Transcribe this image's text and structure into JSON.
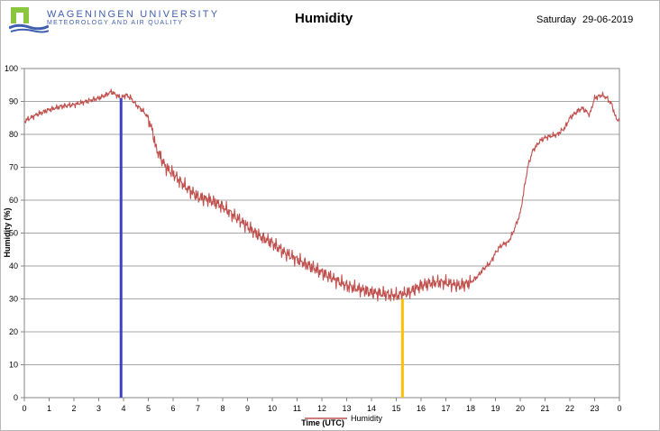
{
  "header": {
    "university": "WAGENINGEN UNIVERSITY",
    "department": "METEOROLOGY AND AIR QUALITY",
    "day": "Saturday",
    "date": "29-06-2019"
  },
  "colors": {
    "series": "#c0504d",
    "marker_left": "#3b43c4",
    "marker_right": "#ffc000",
    "grid": "#a6a6a6",
    "logo_green": "#8bc63f",
    "logo_blue": "#3f5fae"
  },
  "chart_data": {
    "type": "line",
    "title": "Humidity",
    "xlabel": "Time (UTC)",
    "ylabel": "Humidity (%)",
    "xlim": [
      0,
      24
    ],
    "ylim": [
      0,
      100
    ],
    "grid": true,
    "legend": "bottom",
    "x_tick_labels": [
      "0",
      "1",
      "2",
      "3",
      "4",
      "5",
      "6",
      "7",
      "8",
      "9",
      "10",
      "11",
      "12",
      "13",
      "14",
      "15",
      "16",
      "17",
      "18",
      "19",
      "20",
      "21",
      "22",
      "23",
      "0"
    ],
    "y_tick_labels": [
      "0",
      "10",
      "20",
      "30",
      "40",
      "50",
      "60",
      "70",
      "80",
      "90",
      "100"
    ],
    "markers": [
      {
        "x": 3.9,
        "y_from": 0,
        "y_to": 91,
        "color": "#3b43c4"
      },
      {
        "x": 15.25,
        "y_from": 0,
        "y_to": 30,
        "color": "#ffc000"
      }
    ],
    "series": [
      {
        "name": "Humidity",
        "x": [
          0,
          0.5,
          1,
          1.5,
          2,
          2.5,
          3,
          3.3,
          3.5,
          3.7,
          3.9,
          4.1,
          4.3,
          4.5,
          4.8,
          5,
          5.2,
          5.3,
          5.5,
          5.7,
          6,
          6.5,
          7,
          7.5,
          8,
          8.5,
          9,
          9.5,
          10,
          10.5,
          11,
          11.5,
          12,
          12.5,
          13,
          13.5,
          14,
          14.5,
          15,
          15.3,
          15.5,
          16,
          16.5,
          17,
          17.5,
          18,
          18.3,
          18.5,
          18.8,
          19,
          19.2,
          19.4,
          19.5,
          19.7,
          20,
          20.3,
          20.5,
          20.8,
          21,
          21.5,
          21.8,
          22,
          22.3,
          22.5,
          22.8,
          23,
          23.3,
          23.5,
          23.7,
          23.85,
          24
        ],
        "values": [
          84,
          86,
          87.5,
          88.5,
          89,
          90,
          91,
          92,
          93,
          92,
          91,
          92,
          91,
          89,
          87,
          85,
          80,
          76,
          73,
          70,
          68,
          64,
          61,
          60,
          58,
          55,
          52,
          49,
          47,
          44,
          42,
          40,
          38,
          36,
          34,
          33,
          32,
          31.5,
          31,
          31.5,
          32,
          34,
          35,
          35,
          34,
          35,
          37,
          39,
          41,
          44,
          46,
          47,
          47,
          50,
          56,
          70,
          75,
          78,
          79,
          80,
          82,
          85,
          87,
          88,
          86,
          91,
          92,
          91,
          89,
          85,
          84
        ]
      }
    ]
  }
}
